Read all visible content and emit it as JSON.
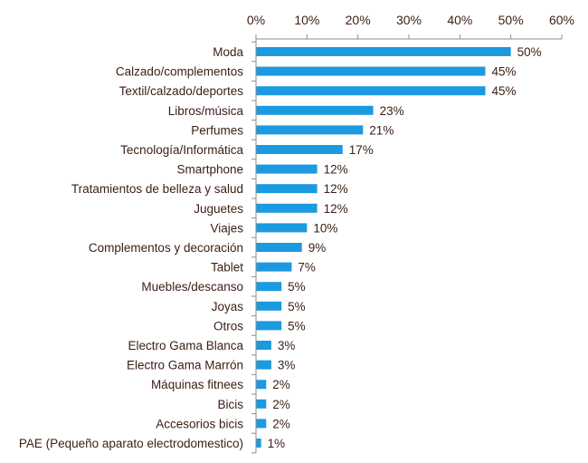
{
  "chart_data": {
    "type": "bar",
    "orientation": "horizontal",
    "title": "",
    "xlabel": "",
    "ylabel": "",
    "xlim": [
      0,
      60
    ],
    "x_ticks": [
      "0%",
      "10%",
      "20%",
      "30%",
      "40%",
      "50%",
      "60%"
    ],
    "x_axis_position": "top",
    "grid": false,
    "legend": "none",
    "categories": [
      "Moda",
      "Calzado/complementos",
      "Textil/calzado/deportes",
      "Libros/música",
      "Perfumes",
      "Tecnología/Informática",
      "Smartphone",
      "Tratamientos de belleza y salud",
      "Juguetes",
      "Viajes",
      "Complementos y decoración",
      "Tablet",
      "Muebles/descanso",
      "Joyas",
      "Otros",
      "Electro Gama Blanca",
      "Electro Gama Marrón",
      "Máquinas fitnees",
      "Bicis",
      "Accesorios bicis",
      "PAE (Pequeño aparato electrodomestico)"
    ],
    "values": [
      50,
      45,
      45,
      23,
      21,
      17,
      12,
      12,
      12,
      10,
      9,
      7,
      5,
      5,
      5,
      3,
      3,
      2,
      2,
      2,
      1
    ],
    "data_labels": [
      "50%",
      "45%",
      "45%",
      "23%",
      "21%",
      "17%",
      "12%",
      "12%",
      "12%",
      "10%",
      "9%",
      "7%",
      "5%",
      "5%",
      "5%",
      "3%",
      "3%",
      "2%",
      "2%",
      "2%",
      "1%"
    ],
    "colors": {
      "bar": "#1b9ae0",
      "axis": "#8c8c8c",
      "text": "#3a1e14"
    }
  }
}
